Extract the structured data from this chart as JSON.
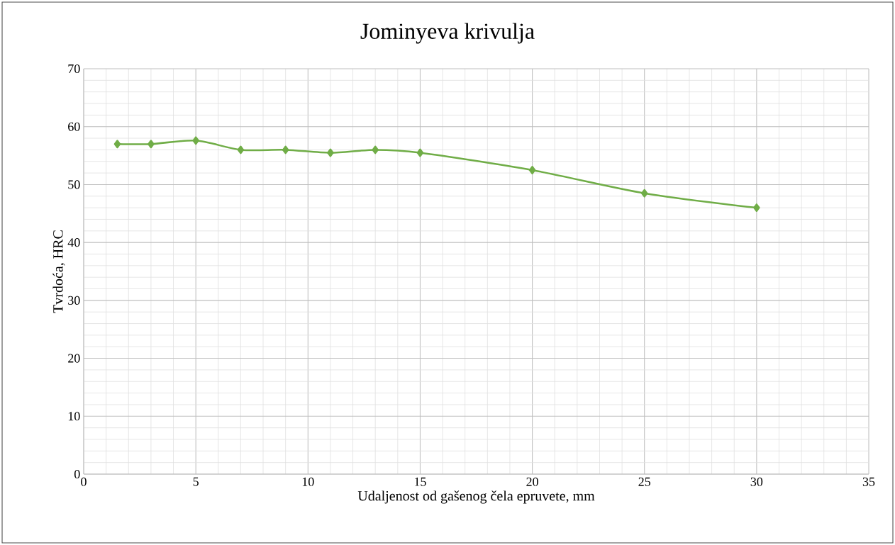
{
  "chart_data": {
    "type": "line",
    "title": "Jominyeva  krivulja",
    "xlabel": "Udaljenost od gašenog čela epruvete, mm",
    "ylabel": "Tvrdoća, HRC",
    "x": [
      1.5,
      3,
      5,
      7,
      9,
      11,
      13,
      15,
      20,
      25,
      30
    ],
    "series": [
      {
        "color": "#70ad47",
        "values": [
          57,
          57,
          57.6,
          56,
          56,
          55.5,
          56,
          55.5,
          52.5,
          48.5,
          46
        ]
      }
    ],
    "xlim": [
      0,
      35
    ],
    "xticks": [
      0,
      5,
      10,
      15,
      20,
      25,
      30,
      35
    ],
    "ylim": [
      0,
      70
    ],
    "yticks": [
      0,
      10,
      20,
      30,
      40,
      50,
      60,
      70
    ],
    "grid": true,
    "marker": "diamond",
    "line_style": "solid"
  }
}
